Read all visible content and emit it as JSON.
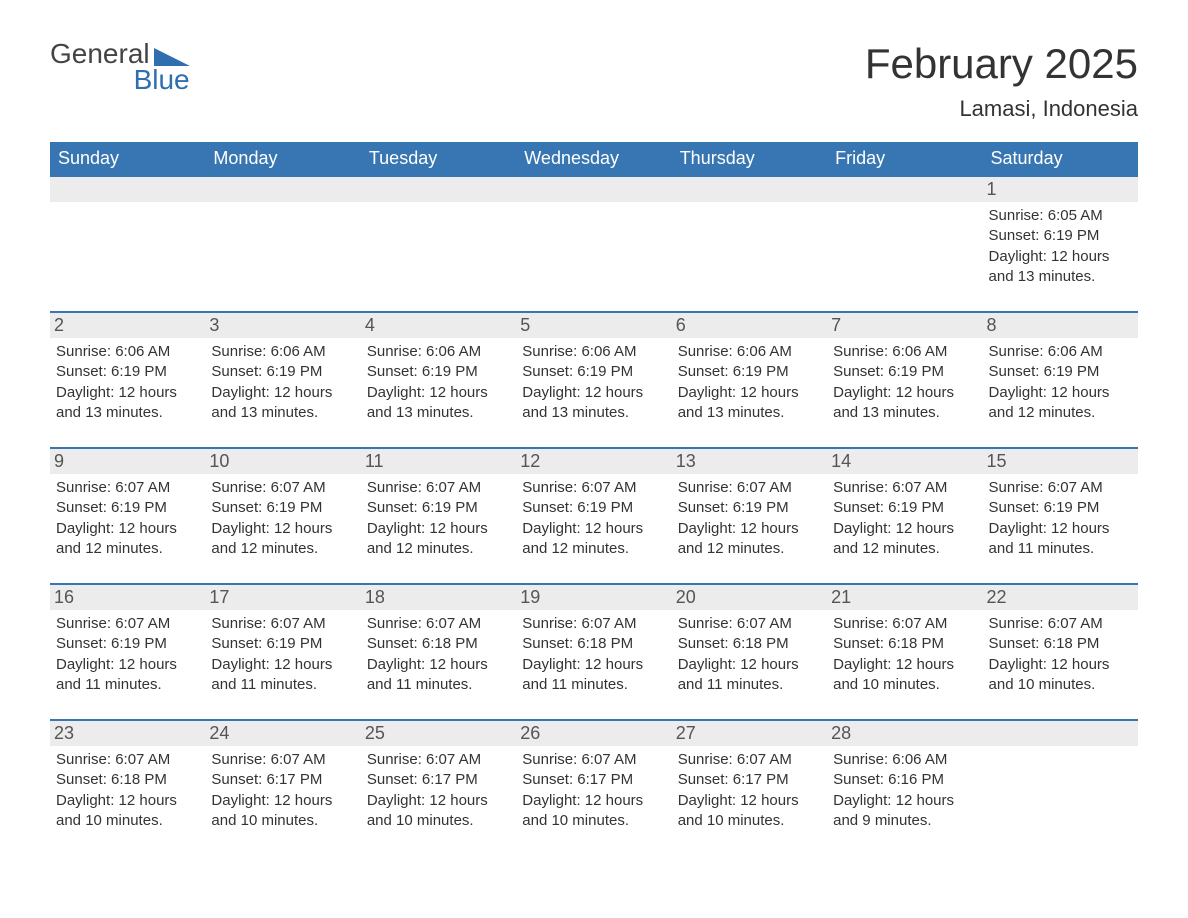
{
  "brand": {
    "name_part1": "General",
    "name_part2": "Blue",
    "accent_color": "#2f6fb0"
  },
  "header": {
    "month_title": "February 2025",
    "location": "Lamasi, Indonesia"
  },
  "colors": {
    "header_row_bg": "#3876b3",
    "header_row_text": "#ffffff",
    "day_number_bg": "#ececec",
    "day_number_text": "#555555",
    "cell_border": "#3876b3",
    "body_text": "#333333",
    "page_bg": "#ffffff"
  },
  "calendar": {
    "day_names": [
      "Sunday",
      "Monday",
      "Tuesday",
      "Wednesday",
      "Thursday",
      "Friday",
      "Saturday"
    ],
    "weeks": [
      [
        null,
        null,
        null,
        null,
        null,
        null,
        {
          "day": "1",
          "sunrise": "Sunrise: 6:05 AM",
          "sunset": "Sunset: 6:19 PM",
          "daylight": "Daylight: 12 hours and 13 minutes."
        }
      ],
      [
        {
          "day": "2",
          "sunrise": "Sunrise: 6:06 AM",
          "sunset": "Sunset: 6:19 PM",
          "daylight": "Daylight: 12 hours and 13 minutes."
        },
        {
          "day": "3",
          "sunrise": "Sunrise: 6:06 AM",
          "sunset": "Sunset: 6:19 PM",
          "daylight": "Daylight: 12 hours and 13 minutes."
        },
        {
          "day": "4",
          "sunrise": "Sunrise: 6:06 AM",
          "sunset": "Sunset: 6:19 PM",
          "daylight": "Daylight: 12 hours and 13 minutes."
        },
        {
          "day": "5",
          "sunrise": "Sunrise: 6:06 AM",
          "sunset": "Sunset: 6:19 PM",
          "daylight": "Daylight: 12 hours and 13 minutes."
        },
        {
          "day": "6",
          "sunrise": "Sunrise: 6:06 AM",
          "sunset": "Sunset: 6:19 PM",
          "daylight": "Daylight: 12 hours and 13 minutes."
        },
        {
          "day": "7",
          "sunrise": "Sunrise: 6:06 AM",
          "sunset": "Sunset: 6:19 PM",
          "daylight": "Daylight: 12 hours and 13 minutes."
        },
        {
          "day": "8",
          "sunrise": "Sunrise: 6:06 AM",
          "sunset": "Sunset: 6:19 PM",
          "daylight": "Daylight: 12 hours and 12 minutes."
        }
      ],
      [
        {
          "day": "9",
          "sunrise": "Sunrise: 6:07 AM",
          "sunset": "Sunset: 6:19 PM",
          "daylight": "Daylight: 12 hours and 12 minutes."
        },
        {
          "day": "10",
          "sunrise": "Sunrise: 6:07 AM",
          "sunset": "Sunset: 6:19 PM",
          "daylight": "Daylight: 12 hours and 12 minutes."
        },
        {
          "day": "11",
          "sunrise": "Sunrise: 6:07 AM",
          "sunset": "Sunset: 6:19 PM",
          "daylight": "Daylight: 12 hours and 12 minutes."
        },
        {
          "day": "12",
          "sunrise": "Sunrise: 6:07 AM",
          "sunset": "Sunset: 6:19 PM",
          "daylight": "Daylight: 12 hours and 12 minutes."
        },
        {
          "day": "13",
          "sunrise": "Sunrise: 6:07 AM",
          "sunset": "Sunset: 6:19 PM",
          "daylight": "Daylight: 12 hours and 12 minutes."
        },
        {
          "day": "14",
          "sunrise": "Sunrise: 6:07 AM",
          "sunset": "Sunset: 6:19 PM",
          "daylight": "Daylight: 12 hours and 12 minutes."
        },
        {
          "day": "15",
          "sunrise": "Sunrise: 6:07 AM",
          "sunset": "Sunset: 6:19 PM",
          "daylight": "Daylight: 12 hours and 11 minutes."
        }
      ],
      [
        {
          "day": "16",
          "sunrise": "Sunrise: 6:07 AM",
          "sunset": "Sunset: 6:19 PM",
          "daylight": "Daylight: 12 hours and 11 minutes."
        },
        {
          "day": "17",
          "sunrise": "Sunrise: 6:07 AM",
          "sunset": "Sunset: 6:19 PM",
          "daylight": "Daylight: 12 hours and 11 minutes."
        },
        {
          "day": "18",
          "sunrise": "Sunrise: 6:07 AM",
          "sunset": "Sunset: 6:18 PM",
          "daylight": "Daylight: 12 hours and 11 minutes."
        },
        {
          "day": "19",
          "sunrise": "Sunrise: 6:07 AM",
          "sunset": "Sunset: 6:18 PM",
          "daylight": "Daylight: 12 hours and 11 minutes."
        },
        {
          "day": "20",
          "sunrise": "Sunrise: 6:07 AM",
          "sunset": "Sunset: 6:18 PM",
          "daylight": "Daylight: 12 hours and 11 minutes."
        },
        {
          "day": "21",
          "sunrise": "Sunrise: 6:07 AM",
          "sunset": "Sunset: 6:18 PM",
          "daylight": "Daylight: 12 hours and 10 minutes."
        },
        {
          "day": "22",
          "sunrise": "Sunrise: 6:07 AM",
          "sunset": "Sunset: 6:18 PM",
          "daylight": "Daylight: 12 hours and 10 minutes."
        }
      ],
      [
        {
          "day": "23",
          "sunrise": "Sunrise: 6:07 AM",
          "sunset": "Sunset: 6:18 PM",
          "daylight": "Daylight: 12 hours and 10 minutes."
        },
        {
          "day": "24",
          "sunrise": "Sunrise: 6:07 AM",
          "sunset": "Sunset: 6:17 PM",
          "daylight": "Daylight: 12 hours and 10 minutes."
        },
        {
          "day": "25",
          "sunrise": "Sunrise: 6:07 AM",
          "sunset": "Sunset: 6:17 PM",
          "daylight": "Daylight: 12 hours and 10 minutes."
        },
        {
          "day": "26",
          "sunrise": "Sunrise: 6:07 AM",
          "sunset": "Sunset: 6:17 PM",
          "daylight": "Daylight: 12 hours and 10 minutes."
        },
        {
          "day": "27",
          "sunrise": "Sunrise: 6:07 AM",
          "sunset": "Sunset: 6:17 PM",
          "daylight": "Daylight: 12 hours and 10 minutes."
        },
        {
          "day": "28",
          "sunrise": "Sunrise: 6:06 AM",
          "sunset": "Sunset: 6:16 PM",
          "daylight": "Daylight: 12 hours and 9 minutes."
        },
        null
      ]
    ]
  }
}
